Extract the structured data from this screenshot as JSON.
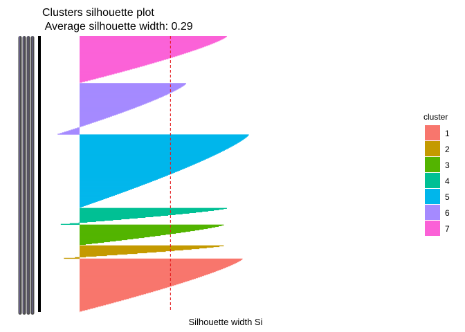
{
  "chart_data": {
    "type": "silhouette",
    "title": "Clusters silhouette plot",
    "subtitle": " Average silhouette width: 0.29",
    "xlabel": "Silhouette width Si",
    "average_silhouette_width": 0.29,
    "legend": {
      "title": "cluster",
      "position": "right",
      "entries": [
        {
          "label": "1",
          "color": "#F8766D"
        },
        {
          "label": "2",
          "color": "#C49A00"
        },
        {
          "label": "3",
          "color": "#53B400"
        },
        {
          "label": "4",
          "color": "#00C094"
        },
        {
          "label": "5",
          "color": "#00B6EB"
        },
        {
          "label": "6",
          "color": "#A58AFF"
        },
        {
          "label": "7",
          "color": "#FB61D7"
        }
      ]
    },
    "clusters": [
      {
        "cluster": "1",
        "color": "#F8766D",
        "size": 77,
        "max_width": 0.52,
        "min_width": 0.0
      },
      {
        "cluster": "2",
        "color": "#C49A00",
        "size": 19,
        "max_width": 0.46,
        "min_width": -0.05
      },
      {
        "cluster": "3",
        "color": "#53B400",
        "size": 30,
        "max_width": 0.46,
        "min_width": 0.0
      },
      {
        "cluster": "4",
        "color": "#00C094",
        "size": 24,
        "max_width": 0.47,
        "min_width": -0.06
      },
      {
        "cluster": "5",
        "color": "#00B6EB",
        "size": 106,
        "max_width": 0.54,
        "min_width": 0.0
      },
      {
        "cluster": "6",
        "color": "#A58AFF",
        "size": 74,
        "max_width": 0.34,
        "min_width": -0.07
      },
      {
        "cluster": "7",
        "color": "#FB61D7",
        "size": 68,
        "max_width": 0.47,
        "min_width": 0.0
      }
    ],
    "reference_line": {
      "x": 0.29,
      "color": "#E41A1C",
      "style": "dashed"
    },
    "grid": false
  }
}
